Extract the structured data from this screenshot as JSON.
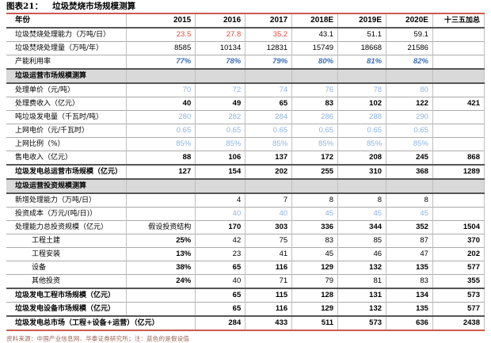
{
  "title": {
    "prefix": "图表21：",
    "text": "垃圾焚烧市场规模测算"
  },
  "source_note": "资料来源：中国产业信息网、华泰证券研究所；注：蓝色的是假设值",
  "colors": {
    "accent_border": "#CC5B4D",
    "forecast_red": "#E24A3B",
    "assumption_blue": "#8DB4E2",
    "rate_blue_italic": "#3A6FB8",
    "section_band": "#D9D9D9"
  },
  "table": {
    "columns": [
      {
        "t": "年份",
        "c": "cnf"
      },
      {
        "t": "2015",
        "c": "yr"
      },
      {
        "t": "2016",
        "c": "yr"
      },
      {
        "t": "2017",
        "c": "yr"
      },
      {
        "t": "2018E",
        "c": "yr"
      },
      {
        "t": "2019E",
        "c": "yr"
      },
      {
        "t": "2020E",
        "c": "yr"
      },
      {
        "t": "十三五加总",
        "c": "cnl"
      }
    ],
    "rows": [
      {
        "label": "垃圾焚烧处理能力（万吨/日）",
        "line": "strong",
        "cells": [
          [
            "23.5",
            "red"
          ],
          [
            "27.8",
            "red"
          ],
          [
            "35.2",
            "red"
          ],
          [
            "43.1",
            "n"
          ],
          [
            "51.1",
            "n"
          ],
          [
            "59.1",
            "n"
          ],
          [
            "",
            ""
          ]
        ]
      },
      {
        "label": "垃圾焚烧处理量（万吨/年）",
        "cells": [
          [
            "8585",
            "n"
          ],
          [
            "10134",
            "n"
          ],
          [
            "12831",
            "n"
          ],
          [
            "15749",
            "n"
          ],
          [
            "18668",
            "n"
          ],
          [
            "21586",
            "n"
          ],
          [
            "",
            ""
          ]
        ]
      },
      {
        "label": "产能利用率",
        "cells": [
          [
            "77%",
            "bli"
          ],
          [
            "78%",
            "bli"
          ],
          [
            "79%",
            "bli"
          ],
          [
            "80%",
            "bli"
          ],
          [
            "81%",
            "bli"
          ],
          [
            "82%",
            "bli"
          ],
          [
            "",
            ""
          ]
        ]
      },
      {
        "label": "垃圾运营市场规模测算",
        "section": true,
        "cells": [
          [
            "",
            ""
          ],
          [
            "",
            ""
          ],
          [
            "",
            ""
          ],
          [
            "",
            ""
          ],
          [
            "",
            ""
          ],
          [
            "",
            ""
          ],
          [
            "",
            ""
          ]
        ]
      },
      {
        "label": "处理单价（元/吨）",
        "cells": [
          [
            "70",
            "blu"
          ],
          [
            "72",
            "blu"
          ],
          [
            "74",
            "blu"
          ],
          [
            "76",
            "blu"
          ],
          [
            "78",
            "blu"
          ],
          [
            "80",
            "blu"
          ],
          [
            "",
            ""
          ]
        ]
      },
      {
        "label": "处理费收入（亿元）",
        "cells": [
          [
            "40",
            "b"
          ],
          [
            "49",
            "b"
          ],
          [
            "65",
            "b"
          ],
          [
            "83",
            "b"
          ],
          [
            "102",
            "b"
          ],
          [
            "122",
            "b"
          ],
          [
            "421",
            "b"
          ]
        ]
      },
      {
        "label": "吨垃圾发电量（千瓦时/吨）",
        "cells": [
          [
            "280",
            "blu"
          ],
          [
            "282",
            "blu"
          ],
          [
            "284",
            "blu"
          ],
          [
            "286",
            "blu"
          ],
          [
            "288",
            "blu"
          ],
          [
            "290",
            "blu"
          ],
          [
            "",
            ""
          ]
        ]
      },
      {
        "label": "上网电价（元/千瓦时）",
        "cells": [
          [
            "0.65",
            "blu"
          ],
          [
            "0.65",
            "blu"
          ],
          [
            "0.65",
            "blu"
          ],
          [
            "0.65",
            "blu"
          ],
          [
            "0.65",
            "blu"
          ],
          [
            "0.65",
            "blu"
          ],
          [
            "",
            ""
          ]
        ]
      },
      {
        "label": "上网比例（%）",
        "cells": [
          [
            "85%",
            "blu"
          ],
          [
            "85%",
            "blu"
          ],
          [
            "85%",
            "blu"
          ],
          [
            "85%",
            "blu"
          ],
          [
            "85%",
            "blu"
          ],
          [
            "85%",
            "blu"
          ],
          [
            "",
            ""
          ]
        ]
      },
      {
        "label": "售电收入（亿元）",
        "cells": [
          [
            "88",
            "b"
          ],
          [
            "106",
            "b"
          ],
          [
            "137",
            "b"
          ],
          [
            "172",
            "b"
          ],
          [
            "208",
            "b"
          ],
          [
            "245",
            "b"
          ],
          [
            "868",
            "b"
          ]
        ]
      },
      {
        "label": "垃圾发电总运营市场规模（亿元）",
        "bold": true,
        "line": "strong",
        "cells": [
          [
            "127",
            "b"
          ],
          [
            "154",
            "b"
          ],
          [
            "202",
            "b"
          ],
          [
            "255",
            "b"
          ],
          [
            "310",
            "b"
          ],
          [
            "368",
            "b"
          ],
          [
            "1289",
            "b"
          ]
        ]
      },
      {
        "label": "垃圾运营投资规模测算",
        "section": true,
        "cells": [
          [
            "",
            ""
          ],
          [
            "",
            ""
          ],
          [
            "",
            ""
          ],
          [
            "",
            ""
          ],
          [
            "",
            ""
          ],
          [
            "",
            ""
          ],
          [
            "",
            ""
          ]
        ]
      },
      {
        "label": "新增处理能力（万吨/日）",
        "cells": [
          [
            "",
            ""
          ],
          [
            "4",
            "n"
          ],
          [
            "7",
            "n"
          ],
          [
            "8",
            "n"
          ],
          [
            "8",
            "n"
          ],
          [
            "8",
            "n"
          ],
          [
            "",
            ""
          ]
        ]
      },
      {
        "label": "投资成本（万元/(吨/日)）",
        "cells": [
          [
            "",
            ""
          ],
          [
            "40",
            "blu"
          ],
          [
            "40",
            "blu"
          ],
          [
            "45",
            "blu"
          ],
          [
            "45",
            "blu"
          ],
          [
            "45",
            "blu"
          ],
          [
            "",
            ""
          ]
        ]
      },
      {
        "label": "处理能力总投资规模（亿元）",
        "cells": [
          [
            "假设投资结构",
            "cn"
          ],
          [
            "170",
            "b"
          ],
          [
            "303",
            "b"
          ],
          [
            "336",
            "b"
          ],
          [
            "344",
            "b"
          ],
          [
            "352",
            "b"
          ],
          [
            "1504",
            "b"
          ]
        ]
      },
      {
        "label": "工程土建",
        "ind": true,
        "cells": [
          [
            "25%",
            "b"
          ],
          [
            "42",
            "n"
          ],
          [
            "75",
            "n"
          ],
          [
            "83",
            "n"
          ],
          [
            "85",
            "n"
          ],
          [
            "87",
            "n"
          ],
          [
            "370",
            "b"
          ]
        ]
      },
      {
        "label": "工程安装",
        "ind": true,
        "cells": [
          [
            "13%",
            "b"
          ],
          [
            "23",
            "n"
          ],
          [
            "41",
            "n"
          ],
          [
            "45",
            "n"
          ],
          [
            "46",
            "n"
          ],
          [
            "47",
            "n"
          ],
          [
            "202",
            "b"
          ]
        ]
      },
      {
        "label": "设备",
        "ind": true,
        "cells": [
          [
            "38%",
            "b"
          ],
          [
            "65",
            "b"
          ],
          [
            "116",
            "b"
          ],
          [
            "129",
            "b"
          ],
          [
            "132",
            "b"
          ],
          [
            "135",
            "b"
          ],
          [
            "577",
            "b"
          ]
        ]
      },
      {
        "label": "其他投资",
        "ind": true,
        "cells": [
          [
            "24%",
            "b"
          ],
          [
            "40",
            "n"
          ],
          [
            "71",
            "n"
          ],
          [
            "79",
            "n"
          ],
          [
            "81",
            "n"
          ],
          [
            "83",
            "n"
          ],
          [
            "355",
            "b"
          ]
        ]
      },
      {
        "label": "垃圾发电工程市场规模（亿元）",
        "bold": true,
        "line": "strong",
        "cells": [
          [
            "",
            ""
          ],
          [
            "65",
            "b"
          ],
          [
            "115",
            "b"
          ],
          [
            "128",
            "b"
          ],
          [
            "131",
            "b"
          ],
          [
            "134",
            "b"
          ],
          [
            "573",
            "b"
          ]
        ]
      },
      {
        "label": "垃圾发电设备市场规模（亿元）",
        "bold": true,
        "cells": [
          [
            "",
            ""
          ],
          [
            "65",
            "b"
          ],
          [
            "116",
            "b"
          ],
          [
            "129",
            "b"
          ],
          [
            "132",
            "b"
          ],
          [
            "135",
            "b"
          ],
          [
            "577",
            "b"
          ]
        ]
      },
      {
        "label": "垃圾发电总市场（工程+设备+运营）（亿元）",
        "bold": true,
        "line": "strong",
        "span": 2,
        "cells": [
          [
            "284",
            "b"
          ],
          [
            "433",
            "b"
          ],
          [
            "511",
            "b"
          ],
          [
            "573",
            "b"
          ],
          [
            "636",
            "b"
          ],
          [
            "2438",
            "b"
          ]
        ]
      }
    ]
  }
}
